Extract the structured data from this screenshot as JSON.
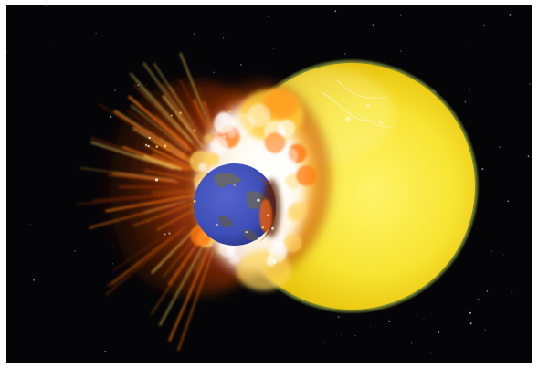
{
  "scene": {
    "subject": "planetary-collision",
    "colors": {
      "space": "#050507",
      "star_speck": "#cfd6e6",
      "yellow_planet_core": "#fff46a",
      "yellow_planet_mid": "#f5df2a",
      "yellow_planet_edge": "#d9b300",
      "yellow_rim_glow": "#d8f05a",
      "fire_core": "#ffffff",
      "fire_hot": "#ffd35a",
      "fire_mid": "#ff7a14",
      "fire_outer": "#8a2b06",
      "smoke": "#3a1508",
      "earth_ocean": "#3f4fb8",
      "earth_ocean_deep": "#2a3688",
      "earth_land": "#6a6a58"
    },
    "icons": [
      "yellow-planet",
      "earth-planet",
      "impact-explosion",
      "debris-plume",
      "starfield"
    ]
  }
}
